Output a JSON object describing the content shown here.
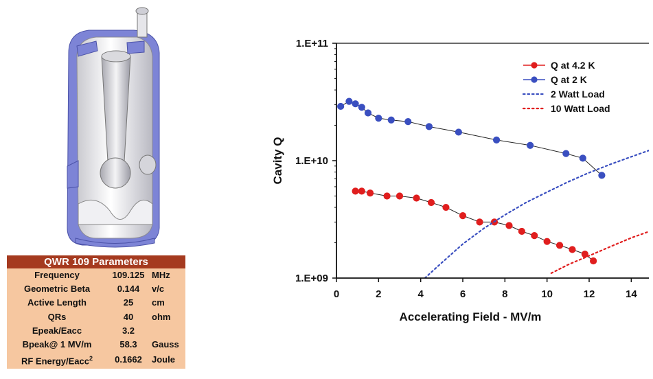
{
  "parameters_table": {
    "title": "QWR 109 Parameters",
    "rows": [
      {
        "name": "Frequency",
        "value": "109.125",
        "unit": "MHz"
      },
      {
        "name": "Geometric Beta",
        "value": "0.144",
        "unit": "v/c"
      },
      {
        "name": "Active Length",
        "value": "25",
        "unit": "cm"
      },
      {
        "name": "QRs",
        "value": "40",
        "unit": "ohm"
      },
      {
        "name": "Epeak/Eacc",
        "value": "3.2",
        "unit": ""
      },
      {
        "name": "Bpeak@ 1 MV/m",
        "value": "58.3",
        "unit": "Gauss"
      },
      {
        "name": "RF Energy/Eacc",
        "name_sup": "2",
        "value": "0.1662",
        "unit": "Joule"
      }
    ]
  },
  "chart_data": {
    "type": "line",
    "xlabel": "Accelerating Field - MV/m",
    "ylabel": "Cavity Q",
    "y_scale": "log",
    "xlim": [
      0,
      15
    ],
    "ylim": [
      1000000000.0,
      100000000000.0
    ],
    "x_ticks": [
      0,
      2,
      4,
      6,
      8,
      10,
      12,
      14
    ],
    "y_ticks": [
      {
        "value": 1000000000.0,
        "label": "1.E+09"
      },
      {
        "value": 10000000000.0,
        "label": "1.E+10"
      },
      {
        "value": 100000000000.0,
        "label": "1.E+11"
      }
    ],
    "legend_position": "top-right",
    "series": [
      {
        "name": "Q at 4.2 K",
        "color": "#e01e1e",
        "style": "line-markers",
        "x": [
          0.9,
          1.2,
          1.6,
          2.4,
          3.0,
          3.8,
          4.5,
          5.2,
          6.0,
          6.8,
          7.5,
          8.2,
          8.8,
          9.4,
          10.0,
          10.6,
          11.2,
          11.8,
          12.2
        ],
        "y": [
          5500000000.0,
          5500000000.0,
          5300000000.0,
          5000000000.0,
          5000000000.0,
          4800000000.0,
          4400000000.0,
          4000000000.0,
          3400000000.0,
          3000000000.0,
          3000000000.0,
          2800000000.0,
          2500000000.0,
          2300000000.0,
          2050000000.0,
          1900000000.0,
          1750000000.0,
          1600000000.0,
          1400000000.0
        ]
      },
      {
        "name": "Q at 2 K",
        "color": "#3a4fc0",
        "style": "line-markers",
        "x": [
          0.2,
          0.6,
          0.9,
          1.2,
          1.5,
          2.0,
          2.6,
          3.4,
          4.4,
          5.8,
          7.6,
          9.2,
          10.9,
          11.7,
          12.6
        ],
        "y": [
          29000000000.0,
          32000000000.0,
          30500000000.0,
          28500000000.0,
          25500000000.0,
          23000000000.0,
          22200000000.0,
          21500000000.0,
          19500000000.0,
          17500000000.0,
          15000000000.0,
          13500000000.0,
          11500000000.0,
          10500000000.0,
          7500000000.0
        ]
      },
      {
        "name": "2 Watt Load",
        "color": "#3a4fc0",
        "style": "dotted",
        "x": [
          4.2,
          5.0,
          6.0,
          7.0,
          8.0,
          9.0,
          10.0,
          11.0,
          12.0,
          13.0,
          14.0,
          15.0
        ],
        "y": [
          1000000000.0,
          1350000000.0,
          1950000000.0,
          2650000000.0,
          3450000000.0,
          4400000000.0,
          5400000000.0,
          6600000000.0,
          7900000000.0,
          9300000000.0,
          10800000000.0,
          12500000000.0
        ]
      },
      {
        "name": "10 Watt Load",
        "color": "#e01e1e",
        "style": "dotted",
        "x": [
          10.2,
          11.0,
          12.0,
          13.0,
          14.0,
          15.0
        ],
        "y": [
          1100000000.0,
          1300000000.0,
          1550000000.0,
          1850000000.0,
          2200000000.0,
          2550000000.0
        ]
      }
    ]
  }
}
